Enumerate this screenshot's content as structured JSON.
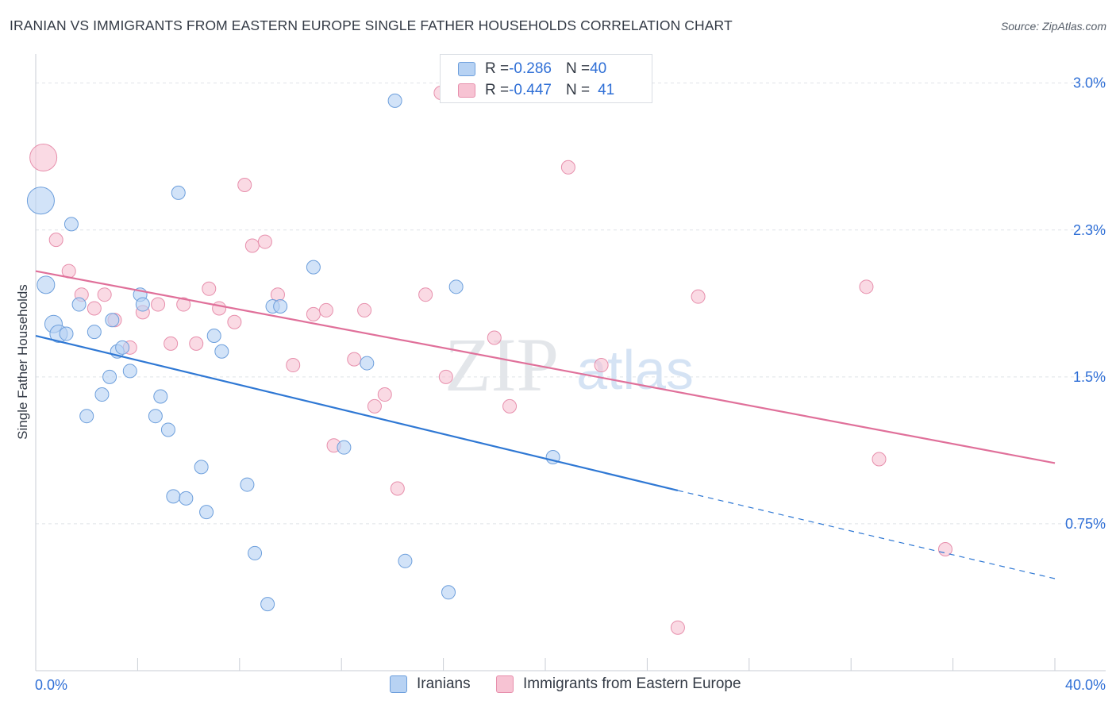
{
  "title": "IRANIAN VS IMMIGRANTS FROM EASTERN EUROPE SINGLE FATHER HOUSEHOLDS CORRELATION CHART",
  "source": "Source: ZipAtlas.com",
  "watermark": {
    "zip": "ZIP",
    "atlas": "atlas"
  },
  "colors": {
    "blue_fill": "#b7d2f3",
    "blue_stroke": "#6d9fdc",
    "blue_line": "#2f78d4",
    "pink_fill": "#f7c3d3",
    "pink_stroke": "#e78fac",
    "pink_line": "#e0709a",
    "tick_label": "#2f6fd6",
    "grid": "#dfe3e8"
  },
  "legend": {
    "rows": [
      {
        "r_label": "R = ",
        "r_value": "-0.286",
        "n_label": "N = ",
        "n_value": "40"
      },
      {
        "r_label": "R = ",
        "r_value": "-0.447",
        "n_label": "N = ",
        "n_value": "41"
      }
    ]
  },
  "chart_data": {
    "type": "scatter",
    "title": "IRANIAN VS IMMIGRANTS FROM EASTERN EUROPE SINGLE FATHER HOUSEHOLDS CORRELATION CHART",
    "xlabel": "",
    "ylabel": "Single Father Households",
    "xlim": [
      0,
      40
    ],
    "ylim": [
      0,
      3.1
    ],
    "x_tick_labels": [
      "0.0%",
      "40.0%"
    ],
    "y_ticks": [
      {
        "value": 0.75,
        "label": "0.75%"
      },
      {
        "value": 1.5,
        "label": "1.5%"
      },
      {
        "value": 2.25,
        "label": "2.3%"
      },
      {
        "value": 3.0,
        "label": "3.0%"
      }
    ],
    "x_minor_ticks": [
      0,
      4,
      8,
      12,
      16,
      20,
      24,
      28,
      32,
      36,
      40
    ],
    "grid": true,
    "series": [
      {
        "name": "Iranians",
        "r": -0.286,
        "n": 40,
        "trendline": {
          "x0": 0,
          "y0": 1.71,
          "x1": 25.2,
          "y1": 0.92,
          "dash_to_x": 40,
          "dash_to_y": 0.47
        },
        "points": [
          {
            "x": 0.2,
            "y": 2.4,
            "size": "large"
          },
          {
            "x": 0.4,
            "y": 1.97
          },
          {
            "x": 0.7,
            "y": 1.77
          },
          {
            "x": 0.9,
            "y": 1.72
          },
          {
            "x": 1.2,
            "y": 1.72
          },
          {
            "x": 1.4,
            "y": 2.28
          },
          {
            "x": 1.7,
            "y": 1.87
          },
          {
            "x": 2.0,
            "y": 1.3
          },
          {
            "x": 2.3,
            "y": 1.73
          },
          {
            "x": 2.6,
            "y": 1.41
          },
          {
            "x": 2.9,
            "y": 1.5
          },
          {
            "x": 3.0,
            "y": 1.79
          },
          {
            "x": 3.2,
            "y": 1.63
          },
          {
            "x": 3.4,
            "y": 1.65
          },
          {
            "x": 3.7,
            "y": 1.53
          },
          {
            "x": 4.1,
            "y": 1.92
          },
          {
            "x": 4.2,
            "y": 1.87
          },
          {
            "x": 4.7,
            "y": 1.3
          },
          {
            "x": 4.9,
            "y": 1.4
          },
          {
            "x": 5.2,
            "y": 1.23
          },
          {
            "x": 5.4,
            "y": 0.89
          },
          {
            "x": 5.6,
            "y": 2.44
          },
          {
            "x": 5.9,
            "y": 0.88
          },
          {
            "x": 6.5,
            "y": 1.04
          },
          {
            "x": 6.7,
            "y": 0.81
          },
          {
            "x": 7.0,
            "y": 1.71
          },
          {
            "x": 7.3,
            "y": 1.63
          },
          {
            "x": 8.3,
            "y": 0.95
          },
          {
            "x": 8.6,
            "y": 0.6
          },
          {
            "x": 9.1,
            "y": 0.34
          },
          {
            "x": 9.3,
            "y": 1.86
          },
          {
            "x": 9.6,
            "y": 1.86
          },
          {
            "x": 10.9,
            "y": 2.06
          },
          {
            "x": 12.1,
            "y": 1.14
          },
          {
            "x": 13.0,
            "y": 1.57
          },
          {
            "x": 14.1,
            "y": 2.91
          },
          {
            "x": 14.5,
            "y": 0.56
          },
          {
            "x": 16.2,
            "y": 0.4
          },
          {
            "x": 16.5,
            "y": 1.96
          },
          {
            "x": 20.3,
            "y": 1.09
          }
        ]
      },
      {
        "name": "Immigrants from Eastern Europe",
        "r": -0.447,
        "n": 41,
        "trendline": {
          "x0": 0,
          "y0": 2.04,
          "x1": 40,
          "y1": 1.06
        },
        "points": [
          {
            "x": 0.3,
            "y": 2.62,
            "size": "large"
          },
          {
            "x": 0.8,
            "y": 2.2
          },
          {
            "x": 1.3,
            "y": 2.04
          },
          {
            "x": 1.8,
            "y": 1.92
          },
          {
            "x": 2.3,
            "y": 1.85
          },
          {
            "x": 2.7,
            "y": 1.92
          },
          {
            "x": 3.1,
            "y": 1.79
          },
          {
            "x": 3.7,
            "y": 1.65
          },
          {
            "x": 4.2,
            "y": 1.83
          },
          {
            "x": 4.8,
            "y": 1.87
          },
          {
            "x": 5.3,
            "y": 1.67
          },
          {
            "x": 5.8,
            "y": 1.87
          },
          {
            "x": 6.3,
            "y": 1.67
          },
          {
            "x": 6.8,
            "y": 1.95
          },
          {
            "x": 7.2,
            "y": 1.85
          },
          {
            "x": 7.8,
            "y": 1.78
          },
          {
            "x": 8.2,
            "y": 2.48
          },
          {
            "x": 8.5,
            "y": 2.17
          },
          {
            "x": 9.0,
            "y": 2.19
          },
          {
            "x": 9.5,
            "y": 1.92
          },
          {
            "x": 10.1,
            "y": 1.56
          },
          {
            "x": 10.9,
            "y": 1.82
          },
          {
            "x": 11.4,
            "y": 1.84
          },
          {
            "x": 11.7,
            "y": 1.15
          },
          {
            "x": 12.5,
            "y": 1.59
          },
          {
            "x": 12.9,
            "y": 1.84
          },
          {
            "x": 13.3,
            "y": 1.35
          },
          {
            "x": 13.7,
            "y": 1.41
          },
          {
            "x": 14.2,
            "y": 0.93
          },
          {
            "x": 15.3,
            "y": 1.92
          },
          {
            "x": 15.9,
            "y": 2.95
          },
          {
            "x": 16.1,
            "y": 1.5
          },
          {
            "x": 18.0,
            "y": 1.7
          },
          {
            "x": 18.6,
            "y": 1.35
          },
          {
            "x": 20.9,
            "y": 2.57
          },
          {
            "x": 22.2,
            "y": 1.56
          },
          {
            "x": 26.0,
            "y": 1.91
          },
          {
            "x": 32.6,
            "y": 1.96
          },
          {
            "x": 33.1,
            "y": 1.08
          },
          {
            "x": 35.7,
            "y": 0.62
          },
          {
            "x": 25.2,
            "y": 0.22
          }
        ]
      }
    ]
  }
}
